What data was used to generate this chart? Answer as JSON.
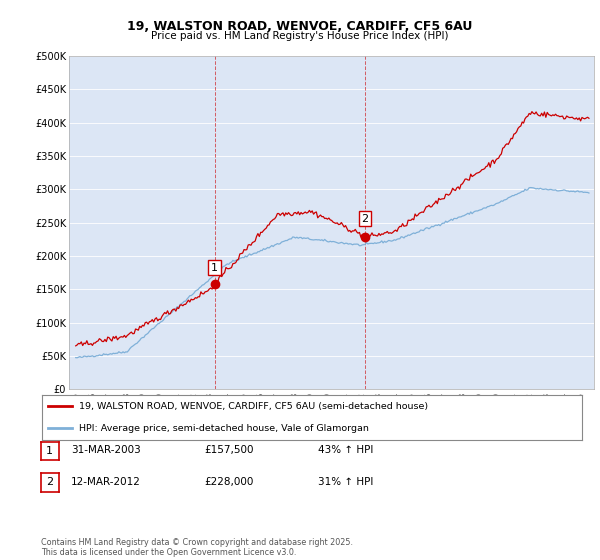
{
  "title1": "19, WALSTON ROAD, WENVOE, CARDIFF, CF5 6AU",
  "title2": "Price paid vs. HM Land Registry's House Price Index (HPI)",
  "bg_color": "#dce6f5",
  "red_color": "#cc0000",
  "blue_color": "#7fb0d8",
  "marker1_date_x": 2003.25,
  "marker2_date_x": 2012.2,
  "marker1_price": 157500,
  "marker2_price": 228000,
  "vline1_x": 2003.25,
  "vline2_x": 2012.2,
  "ylim": [
    0,
    500000
  ],
  "yticks": [
    0,
    50000,
    100000,
    150000,
    200000,
    250000,
    300000,
    350000,
    400000,
    450000,
    500000
  ],
  "ytick_labels": [
    "£0",
    "£50K",
    "£100K",
    "£150K",
    "£200K",
    "£250K",
    "£300K",
    "£350K",
    "£400K",
    "£450K",
    "£500K"
  ],
  "xlim_start": 1994.6,
  "xlim_end": 2025.8,
  "legend_red_label": "19, WALSTON ROAD, WENVOE, CARDIFF, CF5 6AU (semi-detached house)",
  "legend_blue_label": "HPI: Average price, semi-detached house, Vale of Glamorgan",
  "table_rows": [
    {
      "num": "1",
      "date": "31-MAR-2003",
      "price": "£157,500",
      "change": "43% ↑ HPI"
    },
    {
      "num": "2",
      "date": "12-MAR-2012",
      "price": "£228,000",
      "change": "31% ↑ HPI"
    }
  ],
  "footer": "Contains HM Land Registry data © Crown copyright and database right 2025.\nThis data is licensed under the Open Government Licence v3.0."
}
